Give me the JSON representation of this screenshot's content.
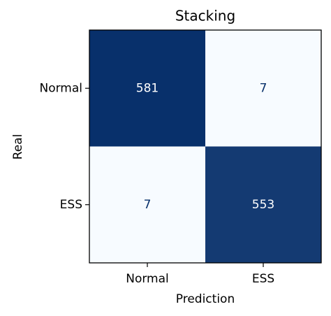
{
  "chart_data": {
    "type": "heatmap",
    "title": "Stacking",
    "x_label": "Prediction",
    "y_label": "Real",
    "x_categories": [
      "Normal",
      "ESS"
    ],
    "y_categories": [
      "Normal",
      "ESS"
    ],
    "values": [
      [
        581,
        7
      ],
      [
        7,
        553
      ]
    ],
    "colormap": [
      "#f7fbff",
      "#08306b"
    ],
    "text_colors": [
      "#08306b",
      "#ffffff"
    ]
  }
}
